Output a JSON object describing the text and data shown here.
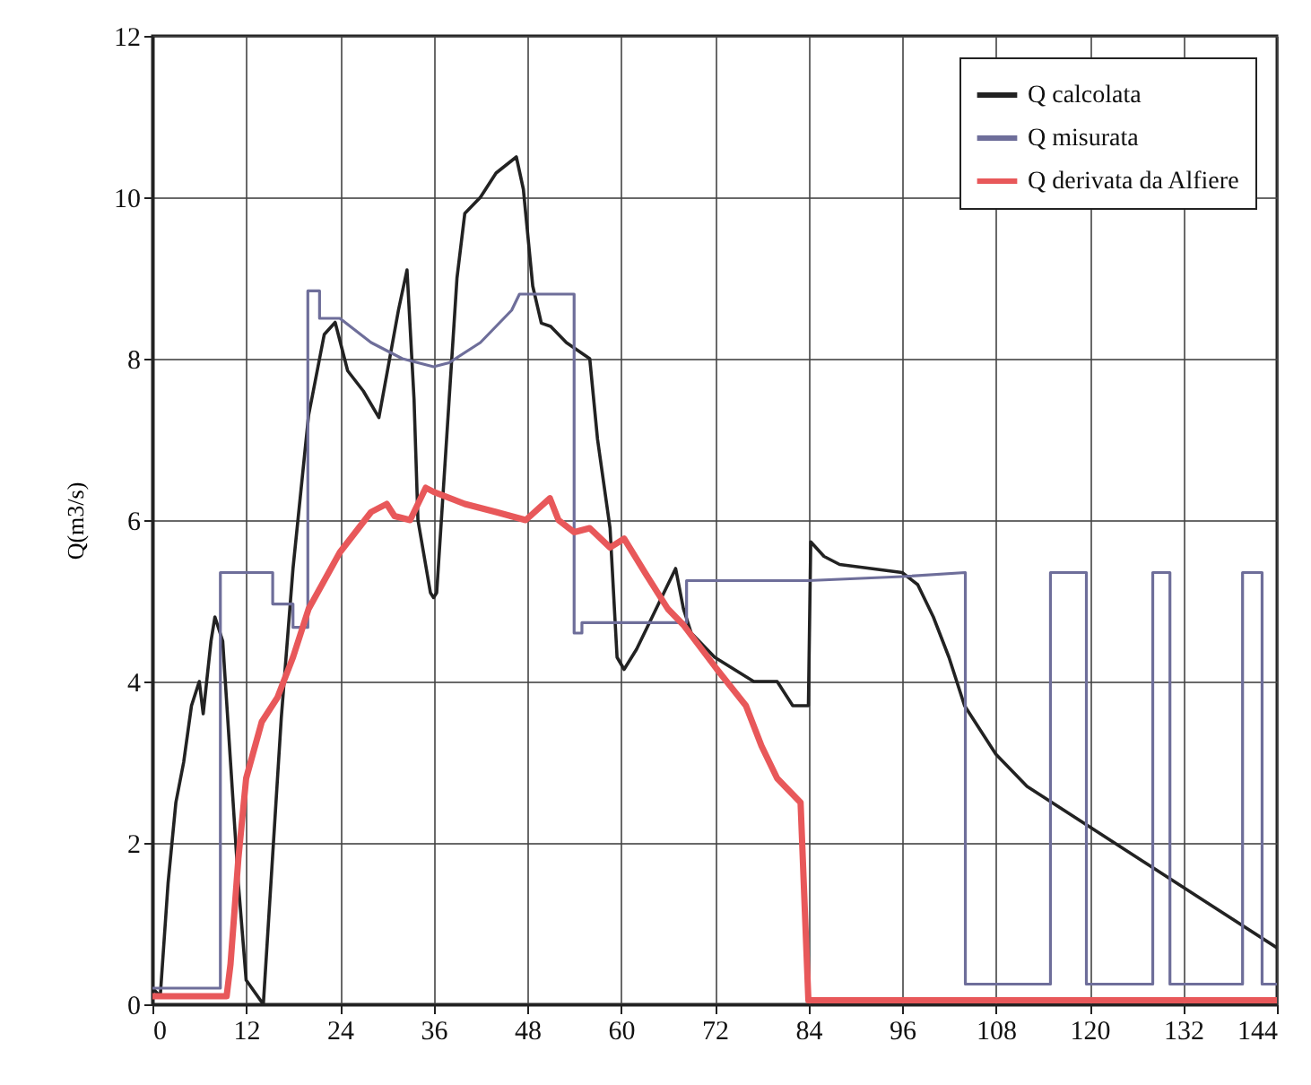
{
  "chart_data": {
    "type": "line",
    "ylabel": "Q(m3/s)",
    "xlim": [
      0,
      144
    ],
    "ylim": [
      0,
      12
    ],
    "xticks": [
      0,
      12,
      24,
      36,
      48,
      60,
      72,
      84,
      96,
      108,
      120,
      132,
      144
    ],
    "yticks": [
      0,
      2,
      4,
      6,
      8,
      10,
      12
    ],
    "grid": true,
    "legend": "top right",
    "marker": "none",
    "line_style": "solid",
    "series": [
      {
        "name": "Q calcolata",
        "color": "#222222",
        "x": [
          0,
          1,
          2,
          3,
          4,
          5,
          6,
          6.5,
          7.5,
          8,
          9,
          10,
          11,
          12,
          14.2,
          16.5,
          18,
          20,
          22,
          23.4,
          25,
          27,
          29,
          30,
          31.5,
          32.6,
          33.5,
          34,
          35.6,
          36,
          36.4,
          37,
          38,
          39,
          40,
          42,
          44,
          46.6,
          47.5,
          48.7,
          49.8,
          51,
          53,
          56,
          57,
          58.6,
          59.5,
          60.4,
          62,
          64,
          67,
          68,
          69,
          72,
          77,
          80,
          82,
          84,
          84.3,
          86,
          88,
          96,
          98,
          100,
          102,
          104,
          108,
          112,
          120,
          128,
          136,
          144
        ],
        "values": [
          0.2,
          0.1,
          1.5,
          2.5,
          3,
          3.7,
          4,
          3.6,
          4.5,
          4.8,
          4.5,
          3,
          1.5,
          0.3,
          0,
          3.55,
          5.4,
          7.3,
          8.3,
          8.45,
          7.85,
          7.6,
          7.27,
          7.8,
          8.6,
          9.1,
          7.5,
          6,
          5.1,
          5.04,
          5.1,
          6,
          7.5,
          9,
          9.8,
          10,
          10.3,
          10.5,
          10.1,
          8.9,
          8.44,
          8.4,
          8.2,
          8,
          7,
          5.9,
          4.3,
          4.15,
          4.4,
          4.8,
          5.4,
          4.9,
          4.6,
          4.3,
          4,
          4,
          3.7,
          3.7,
          5.73,
          5.55,
          5.45,
          5.35,
          5.2,
          4.8,
          4.3,
          3.7,
          3.1,
          2.7,
          2.2,
          1.7,
          1.2,
          0.7
        ]
      },
      {
        "name": "Q misurata",
        "color": "#6e6e9a",
        "x": [
          0,
          8.7,
          8.7,
          15.4,
          15.4,
          18,
          18,
          19.9,
          19.9,
          21.4,
          21.4,
          24,
          28,
          32,
          36,
          38,
          42,
          46,
          47,
          54,
          54,
          55,
          55,
          68.4,
          68.4,
          84,
          96,
          104.1,
          104.1,
          115,
          115,
          119.6,
          119.6,
          128.1,
          128.1,
          130.3,
          130.3,
          139.6,
          139.6,
          142.1,
          142.1,
          144
        ],
        "values": [
          0.2,
          0.2,
          5.35,
          5.35,
          4.96,
          4.96,
          4.67,
          4.67,
          8.84,
          8.84,
          8.5,
          8.5,
          8.2,
          8,
          7.9,
          7.95,
          8.2,
          8.6,
          8.8,
          8.8,
          4.6,
          4.6,
          4.73,
          4.73,
          5.25,
          5.25,
          5.3,
          5.35,
          0.25,
          0.25,
          5.35,
          5.35,
          0.25,
          0.25,
          5.35,
          5.35,
          0.25,
          0.25,
          5.35,
          5.35,
          0.25,
          0.25
        ]
      },
      {
        "name": "Q derivata da Alfiere",
        "color": "#e8585a",
        "x": [
          0,
          9.5,
          10,
          11,
          12,
          14,
          16,
          18,
          20,
          24,
          28,
          30,
          31,
          33,
          35,
          36,
          40,
          44,
          47.8,
          50.9,
          52,
          54,
          56,
          58.6,
          60.4,
          63.2,
          66,
          68,
          72.3,
          76,
          78,
          80,
          83,
          84,
          144
        ],
        "values": [
          0.1,
          0.1,
          0.5,
          1.8,
          2.8,
          3.5,
          3.8,
          4.3,
          4.9,
          5.6,
          6.1,
          6.2,
          6.05,
          6,
          6.4,
          6.35,
          6.2,
          6.1,
          6,
          6.27,
          6,
          5.85,
          5.9,
          5.66,
          5.77,
          5.33,
          4.9,
          4.7,
          4.15,
          3.7,
          3.2,
          2.8,
          2.5,
          0.05,
          0.05
        ]
      }
    ]
  }
}
